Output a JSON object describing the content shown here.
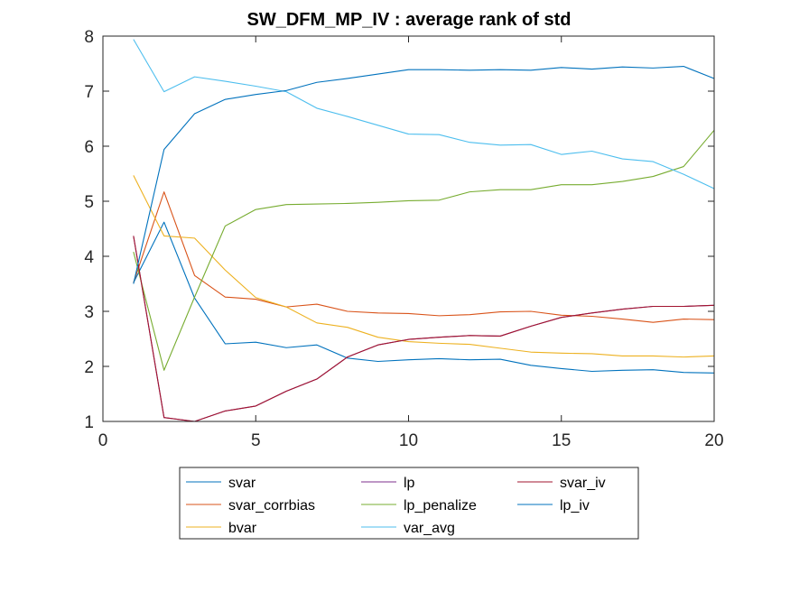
{
  "chart_data": {
    "type": "line",
    "title": "SW_DFM_MP_IV : average rank of std",
    "xlabel": "",
    "ylabel": "",
    "xlim": [
      0,
      20
    ],
    "ylim": [
      1,
      8
    ],
    "xticks": [
      0,
      5,
      10,
      15,
      20
    ],
    "yticks": [
      1,
      2,
      3,
      4,
      5,
      6,
      7,
      8
    ],
    "grid": false,
    "legend_position": "bottom-outside",
    "x": [
      1,
      2,
      3,
      4,
      5,
      6,
      7,
      8,
      9,
      10,
      11,
      12,
      13,
      14,
      15,
      16,
      17,
      18,
      19,
      20
    ],
    "series": [
      {
        "name": "svar",
        "color": "#0072BD",
        "values": [
          3.52,
          4.62,
          3.24,
          2.41,
          2.44,
          2.34,
          2.39,
          2.15,
          2.09,
          2.12,
          2.14,
          2.12,
          2.13,
          2.02,
          1.96,
          1.91,
          1.93,
          1.94,
          1.89,
          1.88
        ]
      },
      {
        "name": "svar_corrbias",
        "color": "#D95319",
        "values": [
          3.52,
          5.17,
          3.65,
          3.26,
          3.22,
          3.08,
          3.13,
          3.0,
          2.97,
          2.96,
          2.92,
          2.94,
          2.99,
          3.0,
          2.93,
          2.91,
          2.86,
          2.8,
          2.86,
          2.85
        ]
      },
      {
        "name": "bvar",
        "color": "#EDB120",
        "values": [
          5.47,
          4.37,
          4.33,
          3.75,
          3.25,
          3.08,
          2.79,
          2.71,
          2.53,
          2.45,
          2.42,
          2.4,
          2.33,
          2.26,
          2.24,
          2.23,
          2.19,
          2.19,
          2.17,
          2.19
        ]
      },
      {
        "name": "lp",
        "color": "#7E2F8E",
        "values": [
          4.37,
          1.07,
          1.0,
          1.19,
          1.28,
          1.55,
          1.77,
          2.17,
          2.39,
          2.49,
          2.53,
          2.56,
          2.55,
          2.73,
          2.89,
          2.97,
          3.04,
          3.09,
          3.09,
          3.11
        ]
      },
      {
        "name": "lp_penalize",
        "color": "#77AC30",
        "values": [
          4.08,
          1.93,
          3.26,
          4.55,
          4.85,
          4.94,
          4.95,
          4.96,
          4.98,
          5.01,
          5.02,
          5.17,
          5.21,
          5.21,
          5.3,
          5.3,
          5.36,
          5.45,
          5.63,
          6.29
        ]
      },
      {
        "name": "var_avg",
        "color": "#4DBEEE",
        "values": [
          7.94,
          6.99,
          7.26,
          7.18,
          7.09,
          6.99,
          6.69,
          6.54,
          6.38,
          6.22,
          6.21,
          6.07,
          6.02,
          6.03,
          5.85,
          5.91,
          5.77,
          5.72,
          5.49,
          5.23
        ]
      },
      {
        "name": "svar_iv",
        "color": "#A2142F",
        "values": [
          4.37,
          1.07,
          1.0,
          1.19,
          1.28,
          1.55,
          1.77,
          2.17,
          2.39,
          2.49,
          2.53,
          2.56,
          2.55,
          2.73,
          2.89,
          2.97,
          3.04,
          3.09,
          3.09,
          3.11
        ]
      },
      {
        "name": "lp_iv",
        "color": "#0072BD",
        "values": [
          3.5,
          5.94,
          6.59,
          6.85,
          6.94,
          7.01,
          7.16,
          7.23,
          7.31,
          7.39,
          7.39,
          7.38,
          7.39,
          7.38,
          7.43,
          7.4,
          7.44,
          7.42,
          7.45,
          7.23
        ]
      }
    ],
    "legend_layout": [
      [
        "svar",
        "lp",
        "svar_iv"
      ],
      [
        "svar_corrbias",
        "lp_penalize",
        "lp_iv"
      ],
      [
        "bvar",
        "var_avg"
      ]
    ]
  }
}
